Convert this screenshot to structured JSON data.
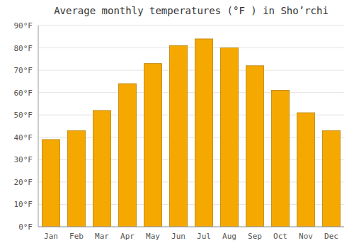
{
  "chart_data": {
    "type": "bar",
    "title": "Average monthly temperatures (°F ) in Shoʼrchi",
    "categories": [
      "Jan",
      "Feb",
      "Mar",
      "Apr",
      "May",
      "Jun",
      "Jul",
      "Aug",
      "Sep",
      "Oct",
      "Nov",
      "Dec"
    ],
    "values": [
      39,
      43,
      52,
      64,
      73,
      81,
      84,
      80,
      72,
      61,
      51,
      43
    ],
    "color": "#F5A800",
    "ylim": [
      0,
      90
    ],
    "yticks": [
      {
        "value": 0,
        "label": "0°F"
      },
      {
        "value": 10,
        "label": "10°F"
      },
      {
        "value": 20,
        "label": "20°F"
      },
      {
        "value": 30,
        "label": "30°F"
      },
      {
        "value": 40,
        "label": "40°F"
      },
      {
        "value": 50,
        "label": "50°F"
      },
      {
        "value": 60,
        "label": "60°F"
      },
      {
        "value": 70,
        "label": "70°F"
      },
      {
        "value": 80,
        "label": "80°F"
      },
      {
        "value": 90,
        "label": "90°F"
      }
    ],
    "grid": true
  }
}
